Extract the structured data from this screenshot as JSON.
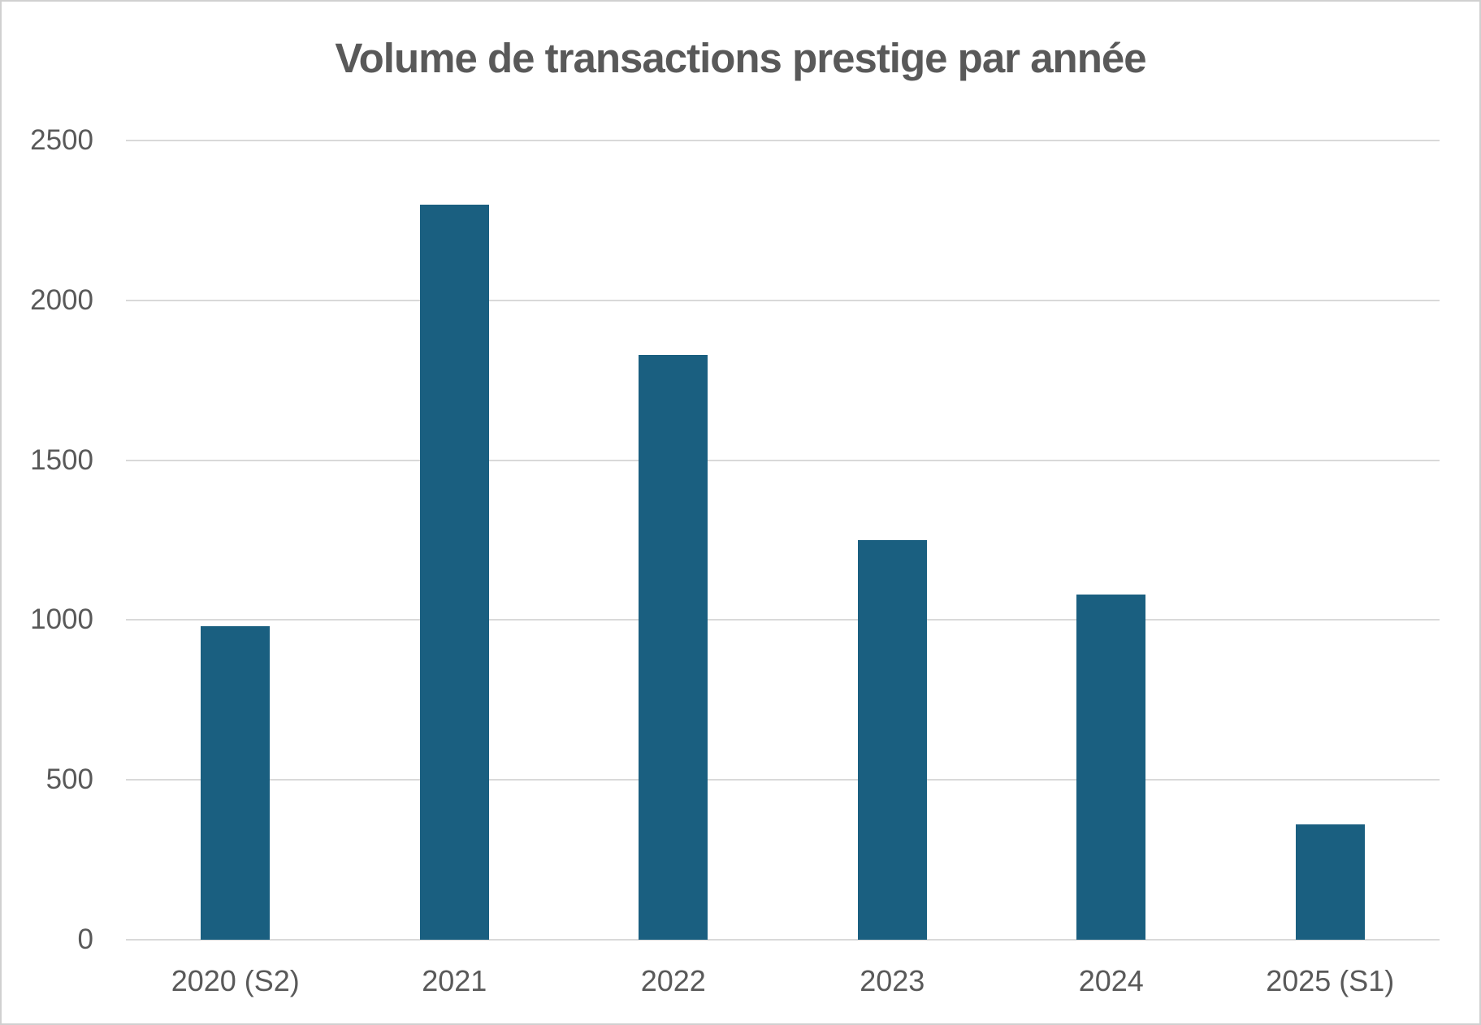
{
  "title": "Volume de transactions prestige par année",
  "colors": {
    "bar": "#1A5F80",
    "text": "#595959",
    "gridline": "#D9D9D9",
    "background": "#FFFFFF",
    "frame_border": "#D0D0D0"
  },
  "chart_data": {
    "type": "bar",
    "title": "Volume de transactions prestige par année",
    "categories": [
      "2020 (S2)",
      "2021",
      "2022",
      "2023",
      "2024",
      "2025 (S1)"
    ],
    "values": [
      980,
      2300,
      1830,
      1250,
      1080,
      360
    ],
    "xlabel": "",
    "ylabel": "",
    "ylim": [
      0,
      2500
    ],
    "yticks": [
      0,
      500,
      1000,
      1500,
      2000,
      2500
    ],
    "grid": true,
    "legend": false,
    "bar_color": "#1A5F80"
  }
}
